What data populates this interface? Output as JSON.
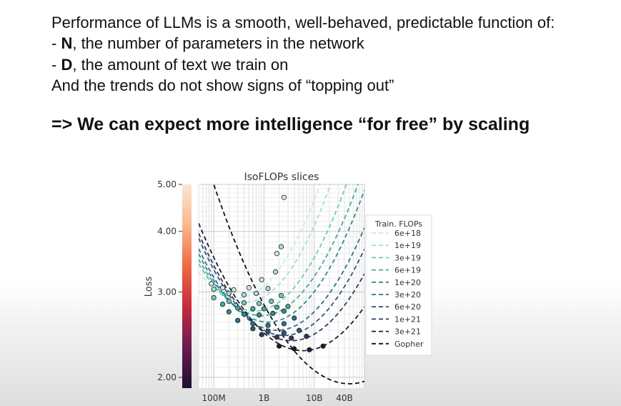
{
  "slide": {
    "intro": "Performance of LLMs is a smooth, well-behaved, predictable function of:",
    "bullets": [
      {
        "dash": "- ",
        "term": "N",
        "rest": ", the number of parameters in the network"
      },
      {
        "dash": "- ",
        "term": "D",
        "rest": ", the amount of text we train on"
      }
    ],
    "trend": "And the trends do not show signs of “topping out”",
    "headline": "=> We can expect more intelligence “for free” by scaling"
  },
  "chart_data": {
    "type": "line",
    "title": "IsoFLOPs slices",
    "xlabel": "",
    "ylabel": "Loss",
    "x_scale": "log",
    "y_scale": "log",
    "xlim": [
      50000000,
      100000000000
    ],
    "ylim": [
      1.9,
      5.0
    ],
    "x_ticks": [
      {
        "label": "100M",
        "value": 100000000
      },
      {
        "label": "1B",
        "value": 1000000000
      },
      {
        "label": "10B",
        "value": 10000000000
      },
      {
        "label": "40B",
        "value": 40000000000
      }
    ],
    "y_ticks": [
      {
        "label": "5.00",
        "value": 5.0
      },
      {
        "label": "4.00",
        "value": 4.0
      },
      {
        "label": "3.00",
        "value": 3.0
      },
      {
        "label": "2.00",
        "value": 2.0
      }
    ],
    "grid": true,
    "legend_title": "Train. FLOPs",
    "legend_position": "right",
    "series": [
      {
        "name": "6e+18",
        "color": "#c9ece6",
        "minN": 300000000,
        "minL": 2.92,
        "curv": 0.2,
        "points": [
          [
            90000000,
            3.12
          ],
          [
            150000000,
            3.06
          ],
          [
            250000000,
            3.03
          ],
          [
            500000000,
            3.06
          ],
          [
            900000000,
            3.18
          ],
          [
            1800000000,
            3.6
          ],
          [
            2500000000,
            4.7
          ]
        ]
      },
      {
        "name": "1e+19",
        "color": "#a2e0d5",
        "minN": 450000000,
        "minL": 2.86,
        "curv": 0.2,
        "points": [
          [
            100000000,
            3.04
          ],
          [
            200000000,
            2.98
          ],
          [
            400000000,
            2.96
          ],
          [
            700000000,
            2.98
          ],
          [
            1200000000,
            3.05
          ],
          [
            1700000000,
            3.3
          ],
          [
            2200000000,
            3.72
          ]
        ]
      },
      {
        "name": "3e+19",
        "color": "#6ccab9",
        "minN": 650000000,
        "minL": 2.74,
        "curv": 0.18,
        "points": [
          [
            100000000,
            2.92
          ],
          [
            200000000,
            2.87
          ],
          [
            400000000,
            2.85
          ],
          [
            800000000,
            2.84
          ],
          [
            1400000000,
            2.87
          ],
          [
            2200000000,
            2.95
          ]
        ]
      },
      {
        "name": "6e+19",
        "color": "#44ab9d",
        "minN": 900000000,
        "minL": 2.68,
        "curv": 0.17,
        "points": [
          [
            150000000,
            2.83
          ],
          [
            300000000,
            2.78
          ],
          [
            600000000,
            2.77
          ],
          [
            1000000000,
            2.77
          ],
          [
            1800000000,
            2.79
          ],
          [
            3000000000,
            2.8
          ]
        ]
      },
      {
        "name": "1e+20",
        "color": "#2f8c8c",
        "minN": 1200000000,
        "minL": 2.6,
        "curv": 0.17,
        "points": [
          [
            200000000,
            2.73
          ],
          [
            400000000,
            2.7
          ],
          [
            800000000,
            2.69
          ],
          [
            1500000000,
            2.71
          ],
          [
            2500000000,
            2.74
          ]
        ]
      },
      {
        "name": "3e+20",
        "color": "#2f6f8c",
        "minN": 1800000000,
        "minL": 2.5,
        "curv": 0.16,
        "points": [
          [
            300000000,
            2.62
          ],
          [
            600000000,
            2.58
          ],
          [
            1200000000,
            2.56
          ],
          [
            2500000000,
            2.58
          ],
          [
            4000000000,
            2.65
          ]
        ]
      },
      {
        "name": "6e+20",
        "color": "#34567c",
        "minN": 2500000000,
        "minL": 2.44,
        "curv": 0.16,
        "points": [
          [
            600000000,
            2.52
          ],
          [
            1200000000,
            2.49
          ],
          [
            2500000000,
            2.47
          ],
          [
            5000000000,
            2.5
          ]
        ]
      },
      {
        "name": "1e+21",
        "color": "#2f3a5e",
        "minN": 3500000000,
        "minL": 2.38,
        "curv": 0.15,
        "points": [
          [
            900000000,
            2.45
          ],
          [
            1800000000,
            2.42
          ],
          [
            3500000000,
            2.41
          ],
          [
            7000000000,
            2.43
          ]
        ]
      },
      {
        "name": "3e+21",
        "color": "#1d1c30",
        "minN": 6000000000,
        "minL": 2.27,
        "curv": 0.14,
        "points": [
          [
            2000000000,
            2.32
          ],
          [
            4000000000,
            2.29
          ],
          [
            8000000000,
            2.28
          ],
          [
            15000000000,
            2.32
          ]
        ]
      },
      {
        "name": "Gopher",
        "color": "#111111",
        "minN": 50000000000,
        "minL": 1.94,
        "curv": 0.13,
        "points": []
      }
    ],
    "colorbar": {
      "stops": [
        "#1d0f2e",
        "#6a1b50",
        "#c72a3e",
        "#ee6a44",
        "#f9b88e",
        "#fbe6d4"
      ]
    }
  }
}
